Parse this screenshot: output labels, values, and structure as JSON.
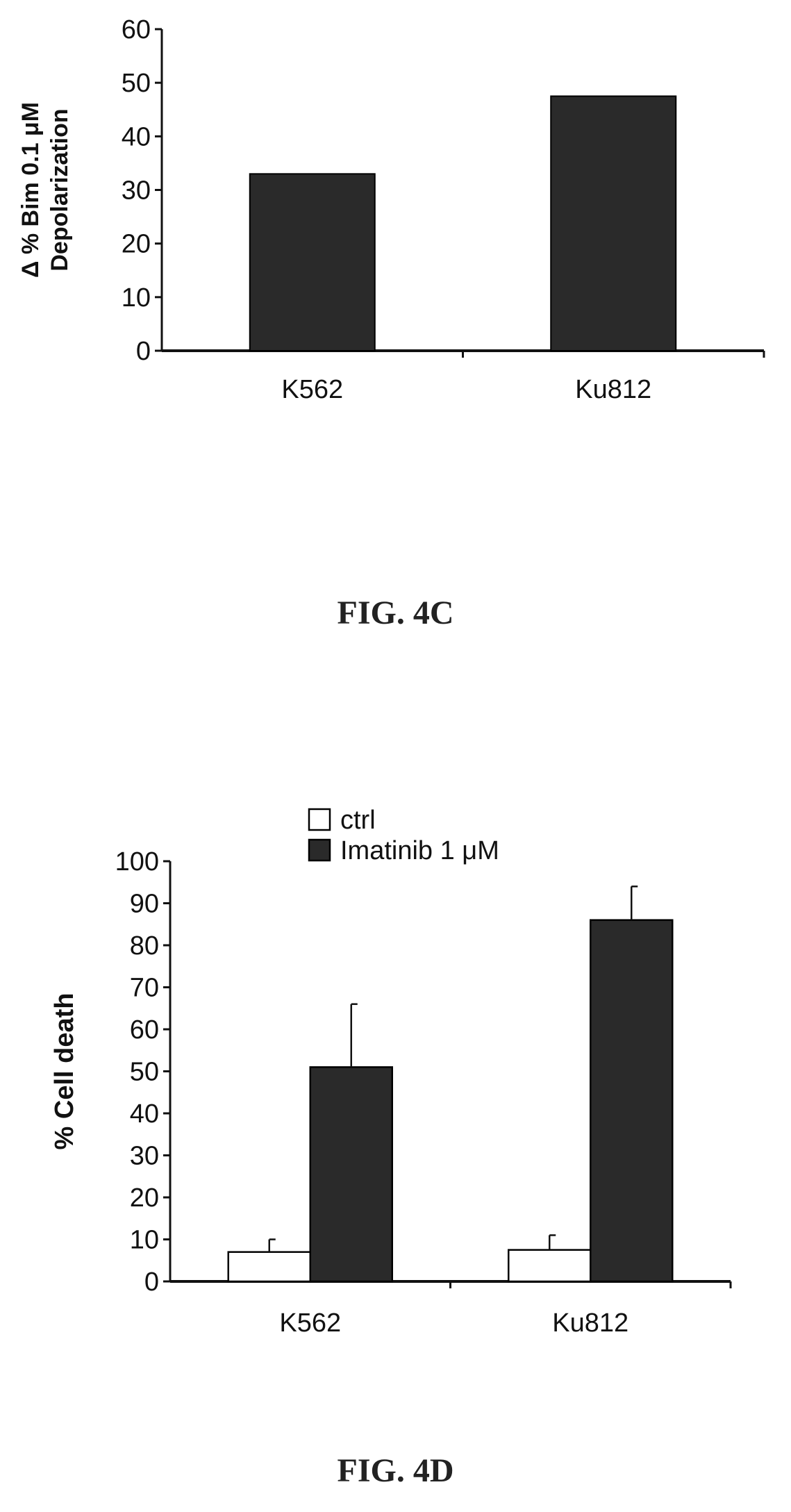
{
  "figures": [
    {
      "label": "FIG. 4C"
    },
    {
      "label": "FIG. 4D"
    }
  ],
  "chart_data": [
    {
      "type": "bar",
      "categories": [
        "K562",
        "Ku812"
      ],
      "values": [
        33,
        47.5
      ],
      "ylabel": "Δ % Bim 0.1 μM Depolarization",
      "ylim": [
        0,
        60
      ],
      "yticks": [
        0,
        10,
        20,
        30,
        40,
        50,
        60
      ],
      "bar_color": "#2a2a2a",
      "grid": false
    },
    {
      "type": "bar",
      "categories": [
        "K562",
        "Ku812"
      ],
      "series": [
        {
          "name": "ctrl",
          "values": [
            7,
            7.5
          ],
          "errors": [
            3,
            3.5
          ],
          "color": "#ffffff"
        },
        {
          "name": "Imatinib 1 μM",
          "values": [
            51,
            86
          ],
          "errors": [
            15,
            8
          ],
          "color": "#2a2a2a"
        }
      ],
      "ylabel": "% Cell death",
      "ylim": [
        0,
        100
      ],
      "yticks": [
        0,
        10,
        20,
        30,
        40,
        50,
        60,
        70,
        80,
        90,
        100
      ],
      "legend_position": "top",
      "grid": false
    }
  ]
}
